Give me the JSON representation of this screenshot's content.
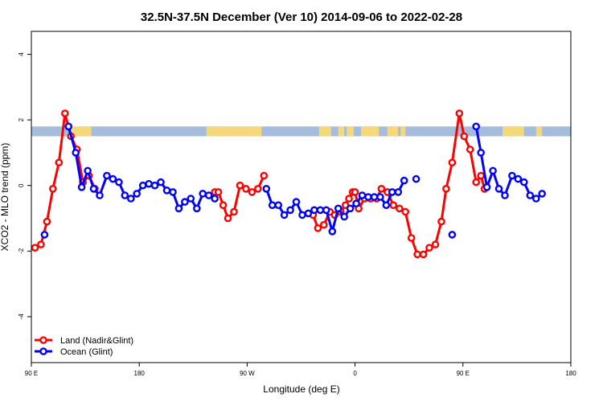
{
  "chart_data": {
    "type": "line",
    "title": "32.5N-37.5N December (Ver 10)   2014-09-06 to 2022-02-28",
    "xlabel": "Longitude (deg E)",
    "ylabel": "XCO2 - MLO trend (ppm)",
    "x_ticks": [
      {
        "value": 90,
        "label": "90 E"
      },
      {
        "value": 180,
        "label": "180"
      },
      {
        "value": 270,
        "label": "90 W"
      },
      {
        "value": 360,
        "label": "0"
      },
      {
        "value": 450,
        "label": "90 E"
      },
      {
        "value": 540,
        "label": "180"
      }
    ],
    "y_ticks": [
      -4,
      -2,
      0,
      2,
      4
    ],
    "xlim": [
      90,
      540
    ],
    "ylim": [
      -5.4,
      4.7
    ],
    "legend_position": "bottom-left",
    "land_band": {
      "y_bottom": 1.5,
      "y_top": 1.8,
      "ocean_color": "#a6bcdc",
      "land_color": "#f5d77c",
      "land_segments": [
        [
          123,
          140
        ],
        [
          236,
          282
        ],
        [
          330,
          340
        ],
        [
          346,
          351
        ],
        [
          353,
          359
        ],
        [
          365,
          380
        ],
        [
          387,
          396
        ],
        [
          398,
          402
        ],
        [
          483,
          501
        ],
        [
          511,
          516
        ]
      ]
    },
    "series": [
      {
        "name": "Land (Nadir&Glint)",
        "color": "#ff0000",
        "points": [
          [
            93,
            -1.9
          ],
          [
            98,
            -1.8
          ],
          [
            103,
            -1.1
          ],
          [
            108,
            -0.1
          ],
          [
            113,
            0.7
          ],
          [
            118,
            2.2
          ],
          [
            123,
            1.5
          ],
          [
            128,
            1.1
          ],
          [
            133,
            0.1
          ],
          [
            138,
            0.3
          ],
          [
            143,
            -0.1
          ],
          [
            243,
            -0.2
          ],
          [
            246,
            -0.2
          ],
          [
            250,
            -0.6
          ],
          [
            254,
            -1.0
          ],
          [
            259,
            -0.8
          ],
          [
            264,
            0.0
          ],
          [
            269,
            -0.1
          ],
          [
            274,
            -0.2
          ],
          [
            279,
            -0.1
          ],
          [
            284,
            0.3
          ],
          [
            325,
            -0.9
          ],
          [
            329,
            -1.3
          ],
          [
            334,
            -1.2
          ],
          [
            339,
            -0.8
          ],
          [
            343,
            -0.9
          ],
          [
            348,
            -0.8
          ],
          [
            352,
            -0.6
          ],
          [
            355,
            -0.4
          ],
          [
            358,
            -0.2
          ],
          [
            360,
            -0.2
          ],
          [
            363,
            -0.7
          ],
          [
            368,
            -0.4
          ],
          [
            373,
            -0.4
          ],
          [
            378,
            -0.4
          ],
          [
            382,
            -0.1
          ],
          [
            387,
            -0.2
          ],
          [
            392,
            -0.6
          ],
          [
            397,
            -0.7
          ],
          [
            402,
            -0.8
          ],
          [
            407,
            -1.6
          ],
          [
            412,
            -2.1
          ],
          [
            417,
            -2.1
          ],
          [
            422,
            -1.9
          ],
          [
            427,
            -1.8
          ],
          [
            432,
            -1.1
          ],
          [
            436,
            -0.1
          ],
          [
            441,
            0.7
          ],
          [
            447,
            2.2
          ],
          [
            451,
            1.5
          ],
          [
            456,
            1.1
          ],
          [
            461,
            0.1
          ],
          [
            465,
            0.3
          ],
          [
            468,
            -0.1
          ]
        ]
      },
      {
        "name": "Ocean (Glint)",
        "color": "#0000ff",
        "points": [
          [
            101,
            -1.5
          ],
          [
            121,
            1.8
          ],
          [
            127,
            1.0
          ],
          [
            132,
            -0.05
          ],
          [
            137,
            0.45
          ],
          [
            142,
            -0.1
          ],
          [
            147,
            -0.3
          ],
          [
            153,
            0.3
          ],
          [
            158,
            0.2
          ],
          [
            163,
            0.1
          ],
          [
            168,
            -0.3
          ],
          [
            173,
            -0.4
          ],
          [
            178,
            -0.25
          ],
          [
            183,
            0.0
          ],
          [
            188,
            0.05
          ],
          [
            193,
            0.0
          ],
          [
            198,
            0.1
          ],
          [
            203,
            -0.15
          ],
          [
            208,
            -0.2
          ],
          [
            213,
            -0.7
          ],
          [
            218,
            -0.5
          ],
          [
            223,
            -0.4
          ],
          [
            228,
            -0.7
          ],
          [
            233,
            -0.25
          ],
          [
            238,
            -0.3
          ],
          [
            243,
            -0.4
          ],
          [
            286,
            -0.1
          ],
          [
            291,
            -0.6
          ],
          [
            296,
            -0.6
          ],
          [
            301,
            -0.9
          ],
          [
            306,
            -0.75
          ],
          [
            311,
            -0.5
          ],
          [
            316,
            -0.9
          ],
          [
            321,
            -0.85
          ],
          [
            326,
            -0.75
          ],
          [
            331,
            -0.75
          ],
          [
            336,
            -0.75
          ],
          [
            341,
            -1.4
          ],
          [
            346,
            -0.7
          ],
          [
            351,
            -0.95
          ],
          [
            356,
            -0.7
          ],
          [
            361,
            -0.55
          ],
          [
            366,
            -0.3
          ],
          [
            371,
            -0.35
          ],
          [
            376,
            -0.35
          ],
          [
            381,
            -0.35
          ],
          [
            386,
            -0.6
          ],
          [
            391,
            -0.2
          ],
          [
            396,
            -0.2
          ],
          [
            401,
            0.15
          ],
          [
            411,
            0.2
          ],
          [
            441,
            -1.5
          ],
          [
            461,
            1.8
          ],
          [
            465,
            1.0
          ],
          [
            470,
            -0.05
          ],
          [
            475,
            0.45
          ],
          [
            480,
            -0.1
          ],
          [
            485,
            -0.3
          ],
          [
            491,
            0.3
          ],
          [
            496,
            0.2
          ],
          [
            501,
            0.1
          ],
          [
            506,
            -0.3
          ],
          [
            511,
            -0.4
          ],
          [
            516,
            -0.25
          ]
        ]
      }
    ]
  }
}
